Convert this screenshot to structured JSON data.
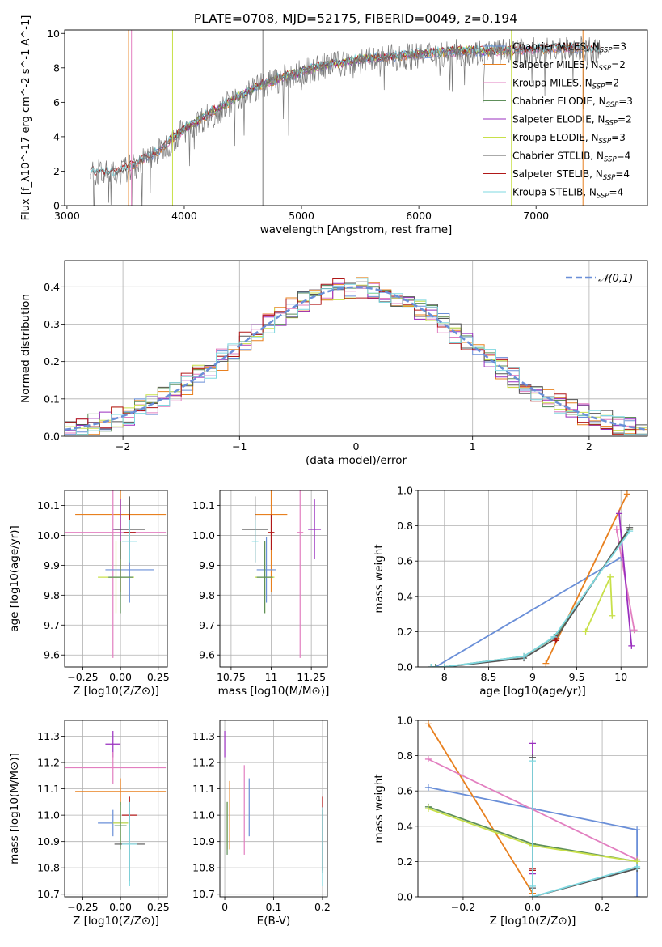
{
  "title": "PLATE=0708, MJD=52175, FIBERID=0049, z=0.194",
  "colors": {
    "Chabrier MILES": "#6a8fd8",
    "Salpeter MILES": "#e8801f",
    "Kroupa MILES": "#e27fc0",
    "Chabrier ELODIE": "#5e8f5a",
    "Salpeter ELODIE": "#9a2fbf",
    "Kroupa ELODIE": "#c8e04a",
    "Chabrier STELIB": "#555555",
    "Salpeter STELIB": "#b01818",
    "Kroupa STELIB": "#7fd8e0",
    "data": "#7a7a7a"
  },
  "chart_data": [
    {
      "type": "line",
      "panel": "spectrum",
      "xlabel": "wavelength [Angstrom, rest frame]",
      "ylabel": "Flux [f_λ10^-17 erg cm^-2 s^-1 A^-1]",
      "xlim": [
        2980,
        7950
      ],
      "ylim": [
        0,
        10.2
      ],
      "xticks": [
        3000,
        4000,
        5000,
        6000,
        7000
      ],
      "yticks": [
        0,
        2,
        4,
        6,
        8,
        10
      ],
      "legend_placement": "upper-right",
      "legend": [
        {
          "text": "Chabrier MILES, N",
          "sub": "SSP",
          "tail": "=3",
          "model": "Chabrier MILES"
        },
        {
          "text": "Salpeter MILES, N",
          "sub": "SSP",
          "tail": "=2",
          "model": "Salpeter MILES"
        },
        {
          "text": "Kroupa MILES, N",
          "sub": "SSP",
          "tail": "=2",
          "model": "Kroupa MILES"
        },
        {
          "text": "Chabrier ELODIE, N",
          "sub": "SSP",
          "tail": "=3",
          "model": "Chabrier ELODIE"
        },
        {
          "text": "Salpeter ELODIE, N",
          "sub": "SSP",
          "tail": "=2",
          "model": "Salpeter ELODIE"
        },
        {
          "text": "Kroupa ELODIE, N",
          "sub": "SSP",
          "tail": "=3",
          "model": "Kroupa ELODIE"
        },
        {
          "text": "Chabrier STELIB, N",
          "sub": "SSP",
          "tail": "=4",
          "model": "Chabrier STELIB"
        },
        {
          "text": "Salpeter STELIB, N",
          "sub": "SSP",
          "tail": "=4",
          "model": "Salpeter STELIB"
        },
        {
          "text": "Kroupa STELIB, N",
          "sub": "SSP",
          "tail": "=4",
          "model": "Kroupa STELIB"
        }
      ],
      "continuum": {
        "x": [
          3200,
          3400,
          3600,
          3800,
          3900,
          4000,
          4200,
          4400,
          4600,
          4800,
          5000,
          5200,
          5500,
          5800,
          6100,
          6400,
          6700,
          7000,
          7300,
          7550
        ],
        "y": [
          1.9,
          1.8,
          2.4,
          3.2,
          3.8,
          4.4,
          5.2,
          6.0,
          6.8,
          7.3,
          7.7,
          8.1,
          8.4,
          8.6,
          8.8,
          8.9,
          8.9,
          9.0,
          9.1,
          8.9
        ]
      },
      "model_ranges": {
        "Chabrier MILES": [
          3525,
          7400
        ],
        "Salpeter MILES": [
          3525,
          7400
        ],
        "Kroupa MILES": [
          3525,
          7400
        ],
        "Chabrier ELODIE": [
          3900,
          6800
        ],
        "Salpeter ELODIE": [
          3900,
          6800
        ],
        "Kroupa ELODIE": [
          3900,
          6800
        ],
        "Chabrier STELIB": [
          3200,
          7550
        ],
        "Salpeter STELIB": [
          3200,
          7550
        ],
        "Kroupa STELIB": [
          3200,
          7550
        ]
      }
    },
    {
      "type": "histogram",
      "panel": "residuals",
      "xlabel": "(data-model)/error",
      "ylabel": "Normed distribution",
      "xlim": [
        -2.5,
        2.5
      ],
      "ylim": [
        0,
        0.47
      ],
      "xticks": [
        -2,
        -1,
        0,
        1,
        2
      ],
      "yticks": [
        0.0,
        0.1,
        0.2,
        0.3,
        0.4
      ],
      "grid": true,
      "bin_width": 0.1,
      "legend": {
        "text": "𝒩(0,1)",
        "placement": "upper-right"
      },
      "gaussian": {
        "mean": 0,
        "sigma": 1
      }
    },
    {
      "type": "scatter",
      "panel": "age-vs-Z",
      "xlabel": "Z [log10(Z/Z⊙)]",
      "ylabel": "age  [log10(age/yr)]",
      "xlim": [
        -0.37,
        0.31
      ],
      "ylim": [
        9.56,
        10.15
      ],
      "xticks": [
        -0.25,
        0.0,
        0.25
      ],
      "xticklabels": [
        "−0.25",
        "0.00",
        "0.25"
      ],
      "yticks": [
        9.6,
        9.7,
        9.8,
        9.9,
        10.0,
        10.1
      ],
      "grid": true,
      "points": [
        {
          "model": "Salpeter MILES",
          "x": 0.0,
          "y": 10.07,
          "xerr": 0.3,
          "yerr": 0.26
        },
        {
          "model": "Kroupa MILES",
          "x": -0.05,
          "y": 10.01,
          "xerr": 0.35,
          "yerr": 0.42
        },
        {
          "model": "Salpeter ELODIE",
          "x": 0.0,
          "y": 10.02,
          "xerr": 0.05,
          "yerr": 0.1
        },
        {
          "model": "Chabrier STELIB",
          "x": 0.06,
          "y": 10.02,
          "xerr": 0.1,
          "yerr": 0.11
        },
        {
          "model": "Chabrier MILES",
          "x": 0.06,
          "y": 9.885,
          "xerr": 0.16,
          "yerr": 0.11
        },
        {
          "model": "Kroupa ELODIE",
          "x": -0.03,
          "y": 9.86,
          "xerr": 0.12,
          "yerr": 0.12
        },
        {
          "model": "Chabrier ELODIE",
          "x": 0.0,
          "y": 9.86,
          "xerr": 0.08,
          "yerr": 0.12
        },
        {
          "model": "Salpeter STELIB",
          "x": 0.06,
          "y": 10.01,
          "xerr": 0.04,
          "yerr": 0.06
        },
        {
          "model": "Kroupa STELIB",
          "x": 0.06,
          "y": 9.98,
          "xerr": 0.05,
          "yerr": 0.07
        }
      ]
    },
    {
      "type": "scatter",
      "panel": "age-vs-mass",
      "xlabel": "mass [log10(M/M⊙)]",
      "ylabel": "",
      "xlim": [
        10.68,
        11.35
      ],
      "ylim": [
        9.56,
        10.15
      ],
      "xticks": [
        10.75,
        11.0,
        11.25
      ],
      "yticks": [
        9.6,
        9.7,
        9.8,
        9.9,
        10.0,
        10.1
      ],
      "grid": true,
      "points": [
        {
          "model": "Salpeter MILES",
          "x": 11.0,
          "y": 10.07,
          "xerr": 0.1,
          "yerr": 0.26
        },
        {
          "model": "Kroupa MILES",
          "x": 11.18,
          "y": 10.01,
          "xerr": 0.02,
          "yerr": 0.42
        },
        {
          "model": "Salpeter ELODIE",
          "x": 11.27,
          "y": 10.02,
          "xerr": 0.04,
          "yerr": 0.1
        },
        {
          "model": "Chabrier STELIB",
          "x": 10.9,
          "y": 10.02,
          "xerr": 0.08,
          "yerr": 0.11
        },
        {
          "model": "Chabrier MILES",
          "x": 10.97,
          "y": 9.885,
          "xerr": 0.06,
          "yerr": 0.11
        },
        {
          "model": "Kroupa ELODIE",
          "x": 10.96,
          "y": 9.86,
          "xerr": 0.06,
          "yerr": 0.12
        },
        {
          "model": "Chabrier ELODIE",
          "x": 10.96,
          "y": 9.86,
          "xerr": 0.05,
          "yerr": 0.12
        },
        {
          "model": "Salpeter STELIB",
          "x": 11.0,
          "y": 10.01,
          "xerr": 0.02,
          "yerr": 0.06
        },
        {
          "model": "Kroupa STELIB",
          "x": 10.9,
          "y": 9.98,
          "xerr": 0.02,
          "yerr": 0.07
        }
      ]
    },
    {
      "type": "line",
      "panel": "weight-vs-age",
      "xlabel": "age  [log10(age/yr)]",
      "ylabel": "mass weight",
      "xlim": [
        7.7,
        10.3
      ],
      "ylim": [
        0,
        1.0
      ],
      "xticks": [
        8.0,
        8.5,
        9.0,
        9.5,
        10.0
      ],
      "yticks": [
        0.0,
        0.2,
        0.4,
        0.6,
        0.8,
        1.0
      ],
      "grid": true,
      "series": [
        {
          "model": "Chabrier MILES",
          "x": [
            7.9,
            10.0
          ],
          "y": [
            0.0,
            0.62
          ]
        },
        {
          "model": "Salpeter MILES",
          "x": [
            9.15,
            10.07
          ],
          "y": [
            0.02,
            0.98
          ]
        },
        {
          "model": "Kroupa MILES",
          "x": [
            9.95,
            10.15
          ],
          "y": [
            0.78,
            0.21
          ]
        },
        {
          "model": "Chabrier ELODIE",
          "x": [
            7.9,
            8.0,
            8.9,
            9.25,
            10.1
          ],
          "y": [
            0.0,
            0.0,
            0.06,
            0.17,
            0.78
          ]
        },
        {
          "model": "Salpeter ELODIE",
          "x": [
            9.98,
            10.12
          ],
          "y": [
            0.87,
            0.12
          ]
        },
        {
          "model": "Kroupa ELODIE",
          "x": [
            9.6,
            9.88,
            9.9
          ],
          "y": [
            0.2,
            0.51,
            0.29
          ]
        },
        {
          "model": "Chabrier STELIB",
          "x": [
            7.85,
            8.0,
            8.9,
            9.26,
            10.1
          ],
          "y": [
            0.0,
            0.0,
            0.05,
            0.16,
            0.79
          ]
        },
        {
          "model": "Salpeter STELIB",
          "x": [
            9.26,
            9.27
          ],
          "y": [
            0.15,
            0.16
          ]
        },
        {
          "model": "Kroupa STELIB",
          "x": [
            7.85,
            8.0,
            8.9,
            9.24,
            10.1
          ],
          "y": [
            0.0,
            0.0,
            0.06,
            0.17,
            0.77
          ]
        }
      ]
    },
    {
      "type": "scatter",
      "panel": "mass-vs-Z",
      "xlabel": "Z [log10(Z/Z⊙)]",
      "ylabel": "mass [log10(M/M⊙)]",
      "xlim": [
        -0.37,
        0.31
      ],
      "ylim": [
        10.69,
        11.36
      ],
      "xticks": [
        -0.25,
        0.0,
        0.25
      ],
      "xticklabels": [
        "−0.25",
        "0.00",
        "0.25"
      ],
      "yticks": [
        10.7,
        10.8,
        10.9,
        11.0,
        11.1,
        11.2,
        11.3
      ],
      "grid": true,
      "points": [
        {
          "model": "Salpeter ELODIE",
          "x": -0.05,
          "y": 11.27,
          "xerr": 0.05,
          "yerr": 0.05
        },
        {
          "model": "Kroupa MILES",
          "x": -0.05,
          "y": 11.18,
          "xerr": 0.35,
          "yerr": 0.06
        },
        {
          "model": "Salpeter MILES",
          "x": 0.0,
          "y": 11.09,
          "xerr": 0.3,
          "yerr": 0.05
        },
        {
          "model": "Salpeter STELIB",
          "x": 0.06,
          "y": 11.0,
          "xerr": 0.05,
          "yerr": 0.07
        },
        {
          "model": "Chabrier MILES",
          "x": -0.05,
          "y": 10.97,
          "xerr": 0.1,
          "yerr": 0.05
        },
        {
          "model": "Kroupa ELODIE",
          "x": 0.0,
          "y": 10.97,
          "xerr": 0.05,
          "yerr": 0.08
        },
        {
          "model": "Chabrier ELODIE",
          "x": 0.0,
          "y": 10.96,
          "xerr": 0.04,
          "yerr": 0.09
        },
        {
          "model": "Chabrier STELIB",
          "x": 0.06,
          "y": 10.89,
          "xerr": 0.1,
          "yerr": 0.14
        },
        {
          "model": "Kroupa STELIB",
          "x": 0.06,
          "y": 10.89,
          "xerr": 0.05,
          "yerr": 0.16
        }
      ]
    },
    {
      "type": "scatter",
      "panel": "mass-vs-EBV",
      "xlabel": "E(B-V)",
      "ylabel": "",
      "xlim": [
        -0.01,
        0.21
      ],
      "ylim": [
        10.69,
        11.36
      ],
      "xticks": [
        0.0,
        0.1,
        0.2
      ],
      "yticks": [
        10.7,
        10.8,
        10.9,
        11.0,
        11.1,
        11.2,
        11.3
      ],
      "grid": true,
      "points": [
        {
          "model": "Salpeter ELODIE",
          "x": 0.0,
          "y": 11.27,
          "xerr": 0,
          "yerr": 0.05
        },
        {
          "model": "Kroupa MILES",
          "x": 0.04,
          "y": 11.02,
          "xerr": 0,
          "yerr": 0.17
        },
        {
          "model": "Salpeter MILES",
          "x": 0.01,
          "y": 11.0,
          "xerr": 0,
          "yerr": 0.13
        },
        {
          "model": "Chabrier MILES",
          "x": 0.05,
          "y": 11.03,
          "xerr": 0,
          "yerr": 0.11
        },
        {
          "model": "Kroupa ELODIE",
          "x": 0.005,
          "y": 10.96,
          "xerr": 0,
          "yerr": 0.09
        },
        {
          "model": "Chabrier ELODIE",
          "x": 0.005,
          "y": 10.95,
          "xerr": 0,
          "yerr": 0.1
        },
        {
          "model": "Salpeter STELIB",
          "x": 0.2,
          "y": 10.93,
          "xerr": 0,
          "yerr": 0.14
        },
        {
          "model": "Chabrier STELIB",
          "x": 0.2,
          "y": 10.9,
          "xerr": 0,
          "yerr": 0.12
        },
        {
          "model": "Kroupa STELIB",
          "x": 0.2,
          "y": 10.88,
          "xerr": 0,
          "yerr": 0.15
        }
      ]
    },
    {
      "type": "line",
      "panel": "weight-vs-Z",
      "xlabel": "Z [log10(Z/Z⊙)]",
      "ylabel": "mass weight",
      "xlim": [
        -0.33,
        0.33
      ],
      "ylim": [
        0,
        1.0
      ],
      "xticks": [
        -0.2,
        0.0,
        0.2
      ],
      "xticklabels": [
        "−0.2",
        "0.0",
        "0.2"
      ],
      "yticks": [
        0.0,
        0.2,
        0.4,
        0.6,
        0.8,
        1.0
      ],
      "grid": true,
      "series": [
        {
          "model": "Chabrier MILES",
          "x": [
            -0.3,
            0.0,
            0.3,
            0.3
          ],
          "y": [
            0.62,
            0.5,
            0.38,
            0.0
          ]
        },
        {
          "model": "Salpeter MILES",
          "x": [
            -0.3,
            0.0
          ],
          "y": [
            0.98,
            0.02
          ]
        },
        {
          "model": "Kroupa MILES",
          "x": [
            -0.3,
            0.3
          ],
          "y": [
            0.78,
            0.21
          ]
        },
        {
          "model": "Chabrier ELODIE",
          "x": [
            -0.3,
            0.0,
            0.3
          ],
          "y": [
            0.51,
            0.3,
            0.2
          ]
        },
        {
          "model": "Salpeter ELODIE",
          "x": [
            0.0,
            0.0
          ],
          "y": [
            0.87,
            0.13
          ]
        },
        {
          "model": "Kroupa ELODIE",
          "x": [
            -0.3,
            0.0,
            0.3
          ],
          "y": [
            0.5,
            0.29,
            0.2
          ]
        },
        {
          "model": "Chabrier STELIB",
          "x": [
            0.0,
            0.0,
            0.0,
            0.3
          ],
          "y": [
            0.79,
            0.05,
            0.0,
            0.16
          ]
        },
        {
          "model": "Salpeter STELIB",
          "x": [
            0.0,
            0.0
          ],
          "y": [
            0.15,
            0.16
          ]
        },
        {
          "model": "Kroupa STELIB",
          "x": [
            0.0,
            0.0,
            0.0,
            0.3
          ],
          "y": [
            0.77,
            0.06,
            0.0,
            0.17
          ]
        }
      ]
    }
  ]
}
